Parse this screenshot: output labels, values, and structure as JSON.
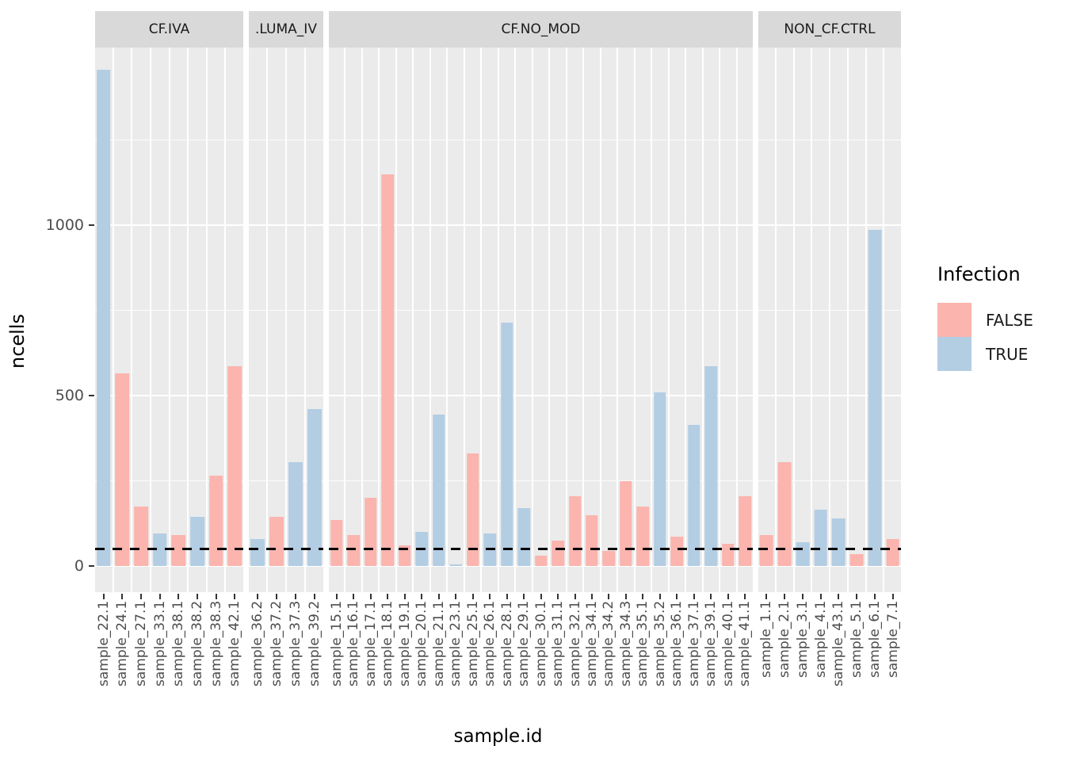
{
  "colors": {
    "false_fill": "#FBB4AE",
    "true_fill": "#B3CDE3",
    "panel_background": "#EBEBEB",
    "strip_background": "#D9D9D9",
    "gridline": "#FFFFFF",
    "tick_text": "#4D4D4D",
    "hline": "#000000"
  },
  "chart_data": {
    "type": "bar",
    "xlabel": "sample.id",
    "ylabel": "ncells",
    "y_tick_labels": [
      "0",
      "500",
      "1000"
    ],
    "y_ticks": [
      0,
      500,
      1000
    ],
    "y_minor_gridlines": [
      250,
      750,
      1250
    ],
    "ylim": [
      -72,
      1526
    ],
    "hline": {
      "value": 50,
      "style": "dashed",
      "color": "#000000"
    },
    "legend": {
      "title": "Infection",
      "position": "right",
      "items": [
        {
          "label": "FALSE",
          "color": "#FBB4AE"
        },
        {
          "label": "TRUE",
          "color": "#B3CDE3"
        }
      ]
    },
    "facets": [
      {
        "label": "CF.IVA",
        "samples": [
          {
            "id": "sample_22.1",
            "infection": "TRUE",
            "ncells": 1455
          },
          {
            "id": "sample_24.1",
            "infection": "FALSE",
            "ncells": 565
          },
          {
            "id": "sample_27.1",
            "infection": "FALSE",
            "ncells": 175
          },
          {
            "id": "sample_33.1",
            "infection": "TRUE",
            "ncells": 95
          },
          {
            "id": "sample_38.1",
            "infection": "FALSE",
            "ncells": 90
          },
          {
            "id": "sample_38.2",
            "infection": "TRUE",
            "ncells": 145
          },
          {
            "id": "sample_38.3",
            "infection": "FALSE",
            "ncells": 265
          },
          {
            "id": "sample_42.1",
            "infection": "FALSE",
            "ncells": 585
          }
        ]
      },
      {
        "label": ".LUMA_IV",
        "samples": [
          {
            "id": "sample_36.2",
            "infection": "TRUE",
            "ncells": 80
          },
          {
            "id": "sample_37.2",
            "infection": "FALSE",
            "ncells": 145
          },
          {
            "id": "sample_37.3",
            "infection": "TRUE",
            "ncells": 305
          },
          {
            "id": "sample_39.2",
            "infection": "TRUE",
            "ncells": 460
          }
        ]
      },
      {
        "label": "CF.NO_MOD",
        "samples": [
          {
            "id": "sample_15.1",
            "infection": "FALSE",
            "ncells": 135
          },
          {
            "id": "sample_16.1",
            "infection": "FALSE",
            "ncells": 90
          },
          {
            "id": "sample_17.1",
            "infection": "FALSE",
            "ncells": 200
          },
          {
            "id": "sample_18.1",
            "infection": "FALSE",
            "ncells": 1150
          },
          {
            "id": "sample_19.1",
            "infection": "FALSE",
            "ncells": 60
          },
          {
            "id": "sample_20.1",
            "infection": "TRUE",
            "ncells": 100
          },
          {
            "id": "sample_21.1",
            "infection": "TRUE",
            "ncells": 445
          },
          {
            "id": "sample_23.1",
            "infection": "TRUE",
            "ncells": 5
          },
          {
            "id": "sample_25.1",
            "infection": "FALSE",
            "ncells": 330
          },
          {
            "id": "sample_26.1",
            "infection": "TRUE",
            "ncells": 95
          },
          {
            "id": "sample_28.1",
            "infection": "TRUE",
            "ncells": 715
          },
          {
            "id": "sample_29.1",
            "infection": "TRUE",
            "ncells": 170
          },
          {
            "id": "sample_30.1",
            "infection": "FALSE",
            "ncells": 30
          },
          {
            "id": "sample_31.1",
            "infection": "FALSE",
            "ncells": 75
          },
          {
            "id": "sample_32.1",
            "infection": "FALSE",
            "ncells": 205
          },
          {
            "id": "sample_34.1",
            "infection": "FALSE",
            "ncells": 150
          },
          {
            "id": "sample_34.2",
            "infection": "FALSE",
            "ncells": 45
          },
          {
            "id": "sample_34.3",
            "infection": "FALSE",
            "ncells": 250
          },
          {
            "id": "sample_35.1",
            "infection": "FALSE",
            "ncells": 175
          },
          {
            "id": "sample_35.2",
            "infection": "TRUE",
            "ncells": 510
          },
          {
            "id": "sample_36.1",
            "infection": "FALSE",
            "ncells": 85
          },
          {
            "id": "sample_37.1",
            "infection": "TRUE",
            "ncells": 415
          },
          {
            "id": "sample_39.1",
            "infection": "TRUE",
            "ncells": 585
          },
          {
            "id": "sample_40.1",
            "infection": "FALSE",
            "ncells": 65
          },
          {
            "id": "sample_41.1",
            "infection": "FALSE",
            "ncells": 205
          }
        ]
      },
      {
        "label": "NON_CF.CTRL",
        "samples": [
          {
            "id": "sample_1.1",
            "infection": "FALSE",
            "ncells": 90
          },
          {
            "id": "sample_2.1",
            "infection": "FALSE",
            "ncells": 305
          },
          {
            "id": "sample_3.1",
            "infection": "TRUE",
            "ncells": 70
          },
          {
            "id": "sample_4.1",
            "infection": "TRUE",
            "ncells": 165
          },
          {
            "id": "sample_43.1",
            "infection": "TRUE",
            "ncells": 140
          },
          {
            "id": "sample_5.1",
            "infection": "FALSE",
            "ncells": 35
          },
          {
            "id": "sample_6.1",
            "infection": "TRUE",
            "ncells": 985
          },
          {
            "id": "sample_7.1",
            "infection": "FALSE",
            "ncells": 80
          }
        ]
      }
    ]
  }
}
